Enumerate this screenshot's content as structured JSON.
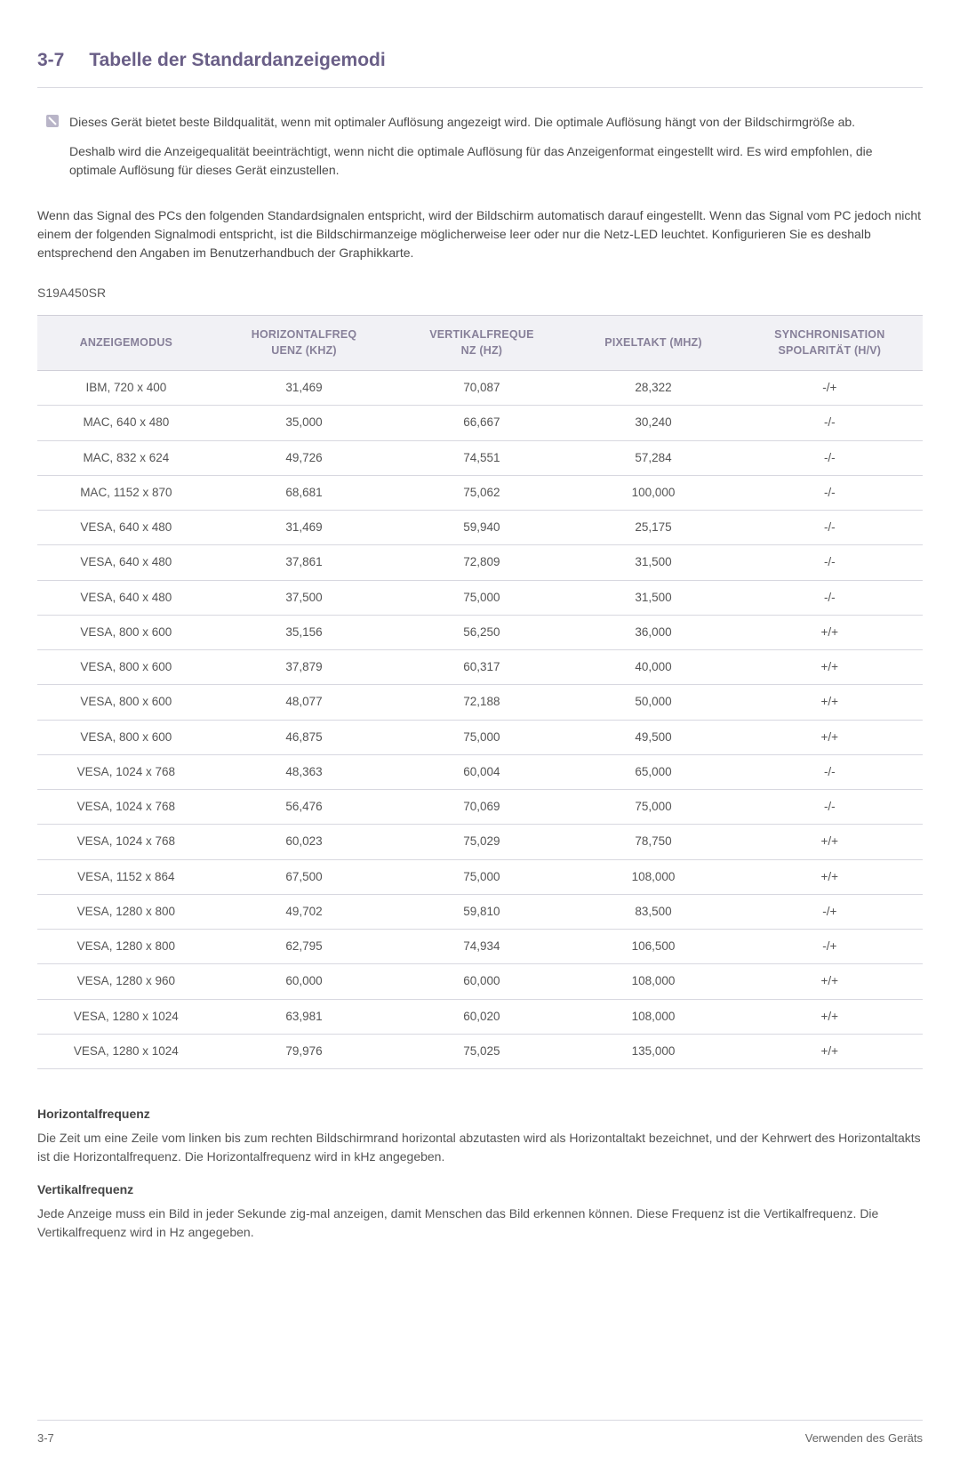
{
  "header": {
    "section_number": "3-7",
    "title": "Tabelle der Standardanzeigemodi"
  },
  "note": {
    "p1": "Dieses Gerät bietet beste Bildqualität, wenn mit optimaler Auflösung angezeigt wird. Die optimale Auflösung hängt von der Bildschirmgröße ab.",
    "p2": "Deshalb wird die Anzeigequalität beeinträchtigt, wenn nicht die optimale Auflösung für das Anzeigenformat eingestellt wird. Es wird empfohlen, die optimale Auflösung für dieses Gerät einzustellen."
  },
  "intro": "Wenn das Signal des PCs den folgenden Standardsignalen entspricht, wird der Bildschirm automatisch darauf eingestellt. Wenn das Signal vom PC jedoch nicht einem der folgenden Signalmodi entspricht, ist die Bildschirmanzeige möglicherweise leer oder nur die Netz-LED leuchtet. Konfigurieren Sie es deshalb entsprechend den Angaben im Benutzerhandbuch der Graphikkarte.",
  "model": "S19A450SR",
  "table": {
    "columns": [
      "ANZEIGEMODUS",
      "HORIZONTALFREQUENZ (KHZ)",
      "VERTIKALFREQUENZ (HZ)",
      "PIXELTAKT (MHZ)",
      "SYNCHRONISATIONSPOLARITÄT (H/V)"
    ],
    "col_labels": {
      "c0": "ANZEIGEMODUS",
      "c1a": "HORIZONTALFREQ",
      "c1b": "UENZ (KHZ)",
      "c2a": "VERTIKALFREQUE",
      "c2b": "NZ (HZ)",
      "c3": "PIXELTAKT (MHZ)",
      "c4a": "SYNCHRONISATION",
      "c4b": "SPOLARITÄT (H/V)"
    },
    "rows": [
      [
        "IBM, 720 x 400",
        "31,469",
        "70,087",
        "28,322",
        "-/+"
      ],
      [
        "MAC, 640 x 480",
        "35,000",
        "66,667",
        "30,240",
        "-/-"
      ],
      [
        "MAC, 832 x 624",
        "49,726",
        "74,551",
        "57,284",
        "-/-"
      ],
      [
        "MAC, 1152 x 870",
        "68,681",
        "75,062",
        "100,000",
        "-/-"
      ],
      [
        "VESA, 640 x 480",
        "31,469",
        "59,940",
        "25,175",
        "-/-"
      ],
      [
        "VESA, 640 x 480",
        "37,861",
        "72,809",
        "31,500",
        "-/-"
      ],
      [
        "VESA, 640 x 480",
        "37,500",
        "75,000",
        "31,500",
        "-/-"
      ],
      [
        "VESA, 800 x 600",
        "35,156",
        "56,250",
        "36,000",
        "+/+"
      ],
      [
        "VESA, 800 x 600",
        "37,879",
        "60,317",
        "40,000",
        "+/+"
      ],
      [
        "VESA, 800 x 600",
        "48,077",
        "72,188",
        "50,000",
        "+/+"
      ],
      [
        "VESA, 800 x 600",
        "46,875",
        "75,000",
        "49,500",
        "+/+"
      ],
      [
        "VESA, 1024 x 768",
        "48,363",
        "60,004",
        "65,000",
        "-/-"
      ],
      [
        "VESA, 1024 x 768",
        "56,476",
        "70,069",
        "75,000",
        "-/-"
      ],
      [
        "VESA, 1024 x 768",
        "60,023",
        "75,029",
        "78,750",
        "+/+"
      ],
      [
        "VESA, 1152 x 864",
        "67,500",
        "75,000",
        "108,000",
        "+/+"
      ],
      [
        "VESA, 1280 x 800",
        "49,702",
        "59,810",
        "83,500",
        "-/+"
      ],
      [
        "VESA, 1280 x 800",
        "62,795",
        "74,934",
        "106,500",
        "-/+"
      ],
      [
        "VESA, 1280 x 960",
        "60,000",
        "60,000",
        "108,000",
        "+/+"
      ],
      [
        "VESA, 1280 x 1024",
        "63,981",
        "60,020",
        "108,000",
        "+/+"
      ],
      [
        "VESA, 1280 x 1024",
        "79,976",
        "75,025",
        "135,000",
        "+/+"
      ]
    ]
  },
  "definitions": {
    "hf_title": "Horizontalfrequenz",
    "hf_body": "Die Zeit um eine Zeile vom linken bis zum rechten Bildschirmrand horizontal abzutasten wird als Horizontaltakt bezeichnet, und der Kehrwert des Horizontaltakts ist die Horizontalfrequenz. Die Horizontalfrequenz wird in kHz angegeben.",
    "vf_title": "Vertikalfrequenz",
    "vf_body": "Jede Anzeige muss ein Bild in jeder Sekunde zig-mal anzeigen, damit Menschen das Bild erkennen können. Diese Frequenz ist die Vertikalfrequenz. Die Vertikalfrequenz wird in Hz angegeben."
  },
  "footer": {
    "left": "3-7",
    "right": "Verwenden des Geräts"
  },
  "colors": {
    "heading": "#6a5f87",
    "th_bg": "#f1f1f5",
    "th_text": "#878099",
    "border": "#d8d8e0",
    "body_text": "#4a4a4a"
  }
}
